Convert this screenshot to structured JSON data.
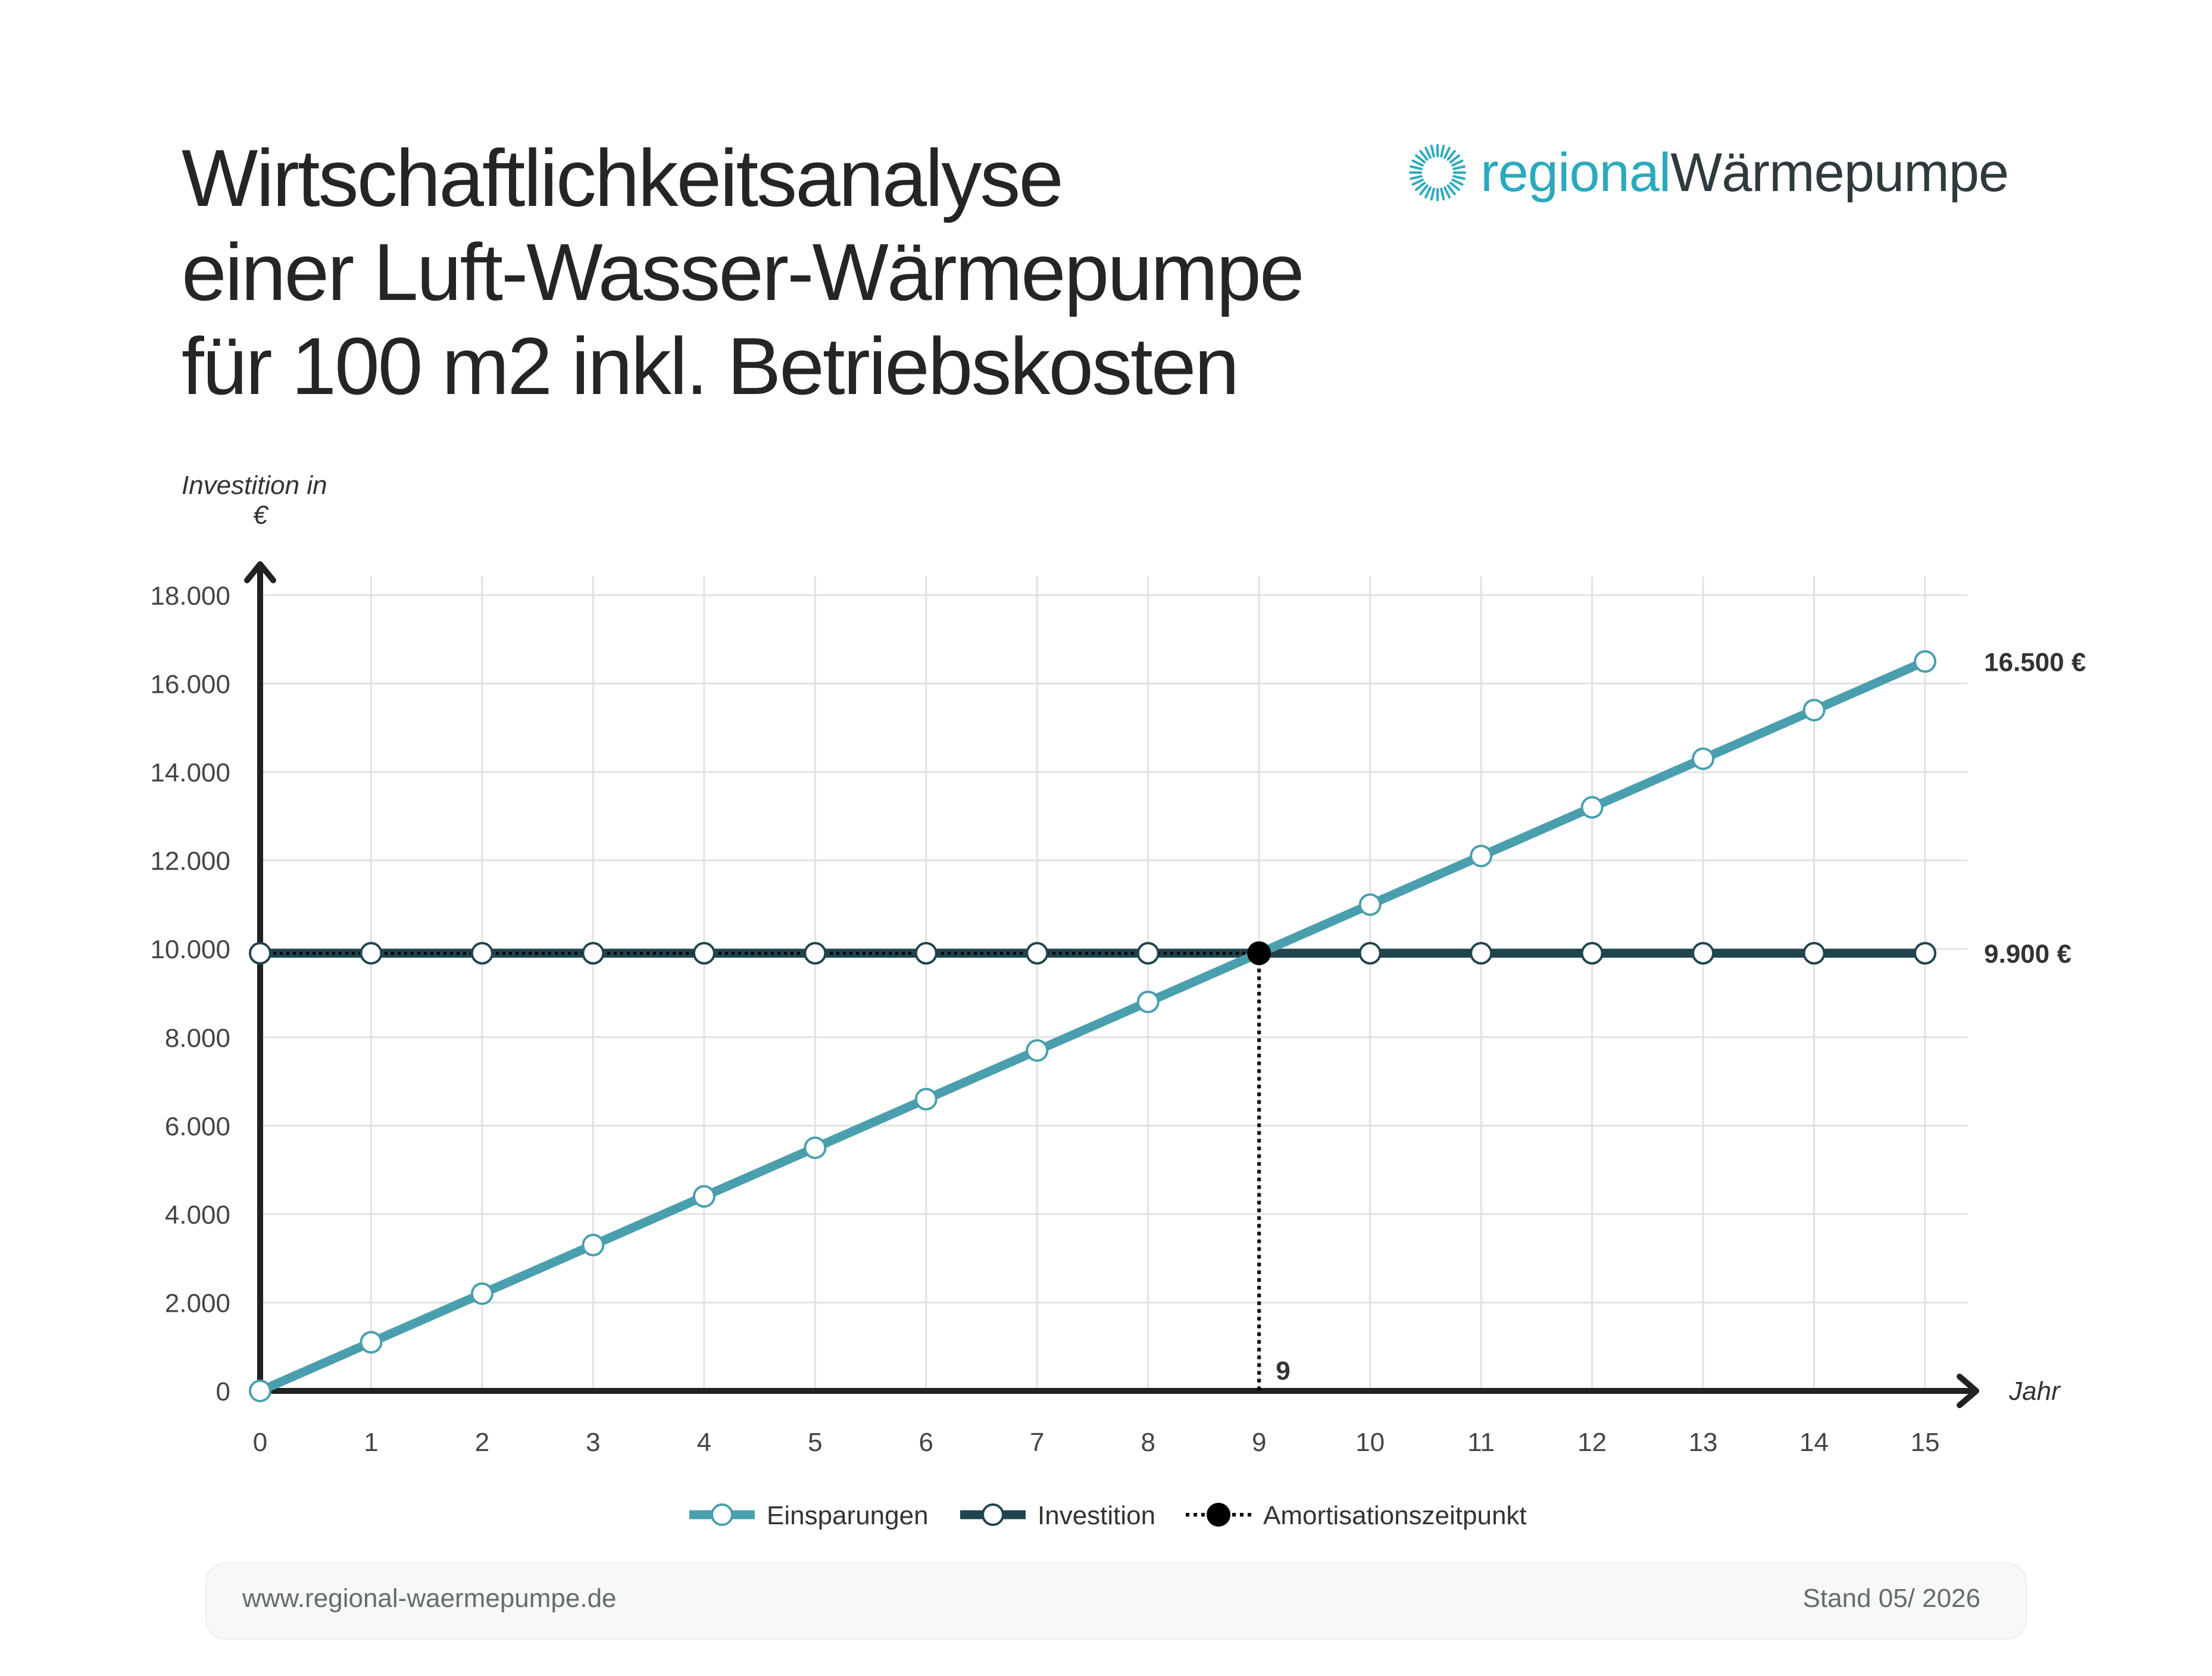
{
  "header": {
    "title_lines": [
      "Wirtschaftlichkeitsanalyse",
      "einer Luft-Wasser-Wärmepumpe",
      "für 100 m2 inkl. Betriebskosten"
    ],
    "brand_part1": "regional",
    "brand_part2": "Wärmepumpe",
    "brand_icon": "sun-burst-icon"
  },
  "colors": {
    "einsparungen": "#4a9fae",
    "investition": "#1f454e",
    "amortisation": "#000000",
    "grid": "#e2e2e2",
    "axis": "#222222",
    "brand_accent": "#2ba9bd"
  },
  "chart_data": {
    "type": "line",
    "ylabel": "Investition in €",
    "xlabel": "Jahr",
    "x": [
      0,
      1,
      2,
      3,
      4,
      5,
      6,
      7,
      8,
      9,
      10,
      11,
      12,
      13,
      14,
      15
    ],
    "xlim": [
      0,
      15
    ],
    "ylim": [
      0,
      18000
    ],
    "y_ticks": [
      0,
      2000,
      4000,
      6000,
      8000,
      10000,
      12000,
      14000,
      16000,
      18000
    ],
    "y_tick_labels": [
      "0",
      "2.000",
      "4.000",
      "6.000",
      "8.000",
      "10.000",
      "12.000",
      "14.000",
      "16.000",
      "18.000"
    ],
    "grid": true,
    "legend_position": "bottom-center",
    "series": [
      {
        "name": "Einsparungen",
        "values": [
          0,
          1100,
          2200,
          3300,
          4400,
          5500,
          6600,
          7700,
          8800,
          9900,
          11000,
          12100,
          13200,
          14300,
          15400,
          16500
        ],
        "end_label": "16.500 €"
      },
      {
        "name": "Investition",
        "values": [
          9900,
          9900,
          9900,
          9900,
          9900,
          9900,
          9900,
          9900,
          9900,
          9900,
          9900,
          9900,
          9900,
          9900,
          9900,
          9900
        ],
        "end_label": "9.900 €"
      }
    ],
    "breakeven": {
      "name": "Amortisationszeitpunkt",
      "x": 9,
      "y": 9900,
      "label": "9"
    }
  },
  "footer": {
    "url": "www.regional-waermepumpe.de",
    "date": "Stand 05/ 2026"
  }
}
